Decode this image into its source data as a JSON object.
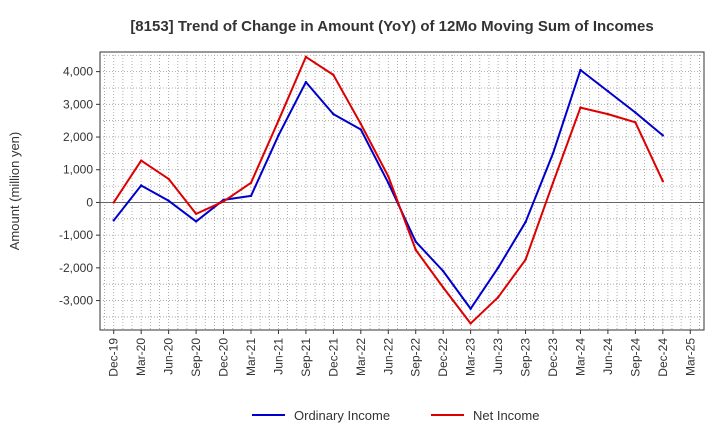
{
  "chart_data": {
    "type": "line",
    "title": "[8153]  Trend of Change in Amount (YoY) of 12Mo Moving Sum of Incomes",
    "ylabel": "Amount (million yen)",
    "xlabel": "",
    "ylim": [
      -3900,
      4600
    ],
    "yticks": [
      4000,
      3000,
      2000,
      1000,
      0,
      -1000,
      -2000,
      -3000
    ],
    "ytick_labels": [
      "4,000",
      "3,000",
      "2,000",
      "1,000",
      "0",
      "-1,000",
      "-2,000",
      "-3,000"
    ],
    "categories": [
      "Dec-19",
      "Mar-20",
      "Jun-20",
      "Sep-20",
      "Dec-20",
      "Mar-21",
      "Jun-21",
      "Sep-21",
      "Dec-21",
      "Mar-22",
      "Jun-22",
      "Sep-22",
      "Dec-22",
      "Mar-23",
      "Jun-23",
      "Sep-23",
      "Dec-23",
      "Mar-24",
      "Jun-24",
      "Sep-24",
      "Dec-24",
      "Mar-25"
    ],
    "grid": true,
    "legend_position": "bottom",
    "series": [
      {
        "name": "Ordinary Income",
        "color": "#0000cc",
        "values": [
          -550,
          520,
          50,
          -580,
          80,
          200,
          2050,
          3680,
          2700,
          2230,
          600,
          -1200,
          -2100,
          -3250,
          -2000,
          -600,
          1500,
          4050,
          3400,
          2750,
          2050,
          null
        ]
      },
      {
        "name": "Net Income",
        "color": "#dd0000",
        "values": [
          0,
          1280,
          720,
          -350,
          30,
          600,
          2500,
          4450,
          3900,
          2400,
          800,
          -1450,
          -2600,
          -3700,
          -2900,
          -1750,
          600,
          2900,
          2700,
          2450,
          650,
          null
        ]
      }
    ]
  }
}
